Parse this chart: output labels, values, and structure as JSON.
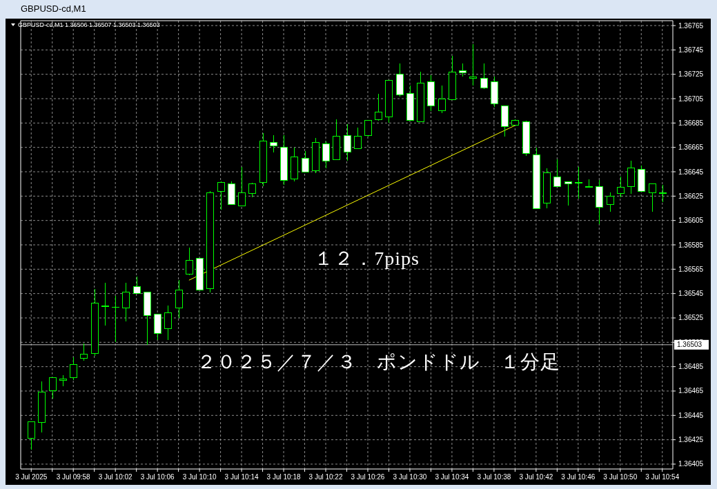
{
  "chart_data": {
    "type": "candlestick",
    "title": "GBPUSD-cd,M1",
    "subtitle": "GBPUSD-cd,M1  1.36506 1.36507 1.36503 1.36503",
    "x": [
      "2025-07-03T09:54",
      "2025-07-03T09:55",
      "2025-07-03T09:56",
      "2025-07-03T09:57",
      "2025-07-03T09:58",
      "2025-07-03T09:59",
      "2025-07-03T10:00",
      "2025-07-03T10:01",
      "2025-07-03T10:02",
      "2025-07-03T10:03",
      "2025-07-03T10:04",
      "2025-07-03T10:05",
      "2025-07-03T10:06",
      "2025-07-03T10:07",
      "2025-07-03T10:08",
      "2025-07-03T10:09",
      "2025-07-03T10:10",
      "2025-07-03T10:11",
      "2025-07-03T10:12",
      "2025-07-03T10:13",
      "2025-07-03T10:14",
      "2025-07-03T10:15",
      "2025-07-03T10:16",
      "2025-07-03T10:17",
      "2025-07-03T10:18",
      "2025-07-03T10:19",
      "2025-07-03T10:20",
      "2025-07-03T10:21",
      "2025-07-03T10:22",
      "2025-07-03T10:23",
      "2025-07-03T10:24",
      "2025-07-03T10:25",
      "2025-07-03T10:26",
      "2025-07-03T10:27",
      "2025-07-03T10:28",
      "2025-07-03T10:29",
      "2025-07-03T10:30",
      "2025-07-03T10:31",
      "2025-07-03T10:32",
      "2025-07-03T10:33",
      "2025-07-03T10:34",
      "2025-07-03T10:35",
      "2025-07-03T10:36",
      "2025-07-03T10:37",
      "2025-07-03T10:38",
      "2025-07-03T10:39",
      "2025-07-03T10:40",
      "2025-07-03T10:41",
      "2025-07-03T10:42",
      "2025-07-03T10:43",
      "2025-07-03T10:44",
      "2025-07-03T10:45",
      "2025-07-03T10:46",
      "2025-07-03T10:47",
      "2025-07-03T10:48",
      "2025-07-03T10:49",
      "2025-07-03T10:50",
      "2025-07-03T10:51",
      "2025-07-03T10:52",
      "2025-07-03T10:53",
      "2025-07-03T10:54"
    ],
    "series": [
      {
        "type": "candlestick",
        "color": "#00ff00",
        "colors": [
          "#000000",
          "#000000",
          "#000000",
          "#000000",
          "#000000",
          "#000000",
          "#000000",
          "#000000",
          "#000000",
          "#000000",
          "#ffffff",
          "#ffffff",
          "#ffffff",
          "#000000",
          "#000000",
          "#000000",
          "#ffffff",
          "#000000",
          "#000000",
          "#ffffff",
          "#000000",
          "#000000",
          "#000000",
          "#ffffff",
          "#ffffff",
          "#000000",
          "#ffffff",
          "#000000",
          "#ffffff",
          "#000000",
          "#ffffff",
          "#000000",
          "#000000",
          "#000000",
          "#000000",
          "#ffffff",
          "#ffffff",
          "#000000",
          "#ffffff",
          "#000000",
          "#000000",
          "#ffffff",
          "#000000",
          "#ffffff",
          "#ffffff",
          "#ffffff",
          "#000000",
          "#ffffff",
          "#ffffff",
          "#000000",
          "#ffffff",
          "#ffffff",
          "#000000",
          "#ffffff",
          "#ffffff",
          "#000000",
          "#000000",
          "#000000",
          "#ffffff",
          "#000000",
          "#000000"
        ],
        "ohlc": [
          [
            1.36426,
            1.3644,
            1.36417,
            1.3644
          ],
          [
            1.36439,
            1.36473,
            1.36431,
            1.36464
          ],
          [
            1.36465,
            1.36476,
            1.36459,
            1.36476
          ],
          [
            1.36474,
            1.36478,
            1.36469,
            1.36475
          ],
          [
            1.36476,
            1.36493,
            1.36474,
            1.36487
          ],
          [
            1.36492,
            1.36504,
            1.3649,
            1.36495
          ],
          [
            1.36496,
            1.36549,
            1.36494,
            1.36537
          ],
          [
            1.36535,
            1.36554,
            1.36519,
            1.36535
          ],
          [
            1.36534,
            1.36543,
            1.36505,
            1.36534
          ],
          [
            1.36533,
            1.36554,
            1.36522,
            1.36546
          ],
          [
            1.36551,
            1.36559,
            1.36545,
            1.36545
          ],
          [
            1.36546,
            1.36546,
            1.36503,
            1.36527
          ],
          [
            1.36528,
            1.36528,
            1.36507,
            1.36512
          ],
          [
            1.36516,
            1.36535,
            1.36507,
            1.36529
          ],
          [
            1.36533,
            1.36556,
            1.36525,
            1.36548
          ],
          [
            1.36561,
            1.36583,
            1.3656,
            1.36572
          ],
          [
            1.36574,
            1.36574,
            1.36548,
            1.36548
          ],
          [
            1.36549,
            1.36629,
            1.36546,
            1.36628
          ],
          [
            1.36629,
            1.36637,
            1.36614,
            1.36636
          ],
          [
            1.36635,
            1.36637,
            1.36618,
            1.36618
          ],
          [
            1.36617,
            1.36649,
            1.36617,
            1.36628
          ],
          [
            1.36627,
            1.36636,
            1.36624,
            1.36635
          ],
          [
            1.36636,
            1.36677,
            1.36633,
            1.3667
          ],
          [
            1.36669,
            1.36675,
            1.36661,
            1.36666
          ],
          [
            1.36665,
            1.36675,
            1.36634,
            1.36638
          ],
          [
            1.36639,
            1.36665,
            1.36637,
            1.36657
          ],
          [
            1.36656,
            1.36662,
            1.36645,
            1.36645
          ],
          [
            1.36646,
            1.36673,
            1.36644,
            1.36669
          ],
          [
            1.36668,
            1.3667,
            1.36648,
            1.36654
          ],
          [
            1.36655,
            1.36688,
            1.36655,
            1.36674
          ],
          [
            1.36675,
            1.36684,
            1.36654,
            1.36661
          ],
          [
            1.36664,
            1.36681,
            1.36664,
            1.36674
          ],
          [
            1.36675,
            1.36687,
            1.36674,
            1.36687
          ],
          [
            1.36688,
            1.36709,
            1.36687,
            1.36694
          ],
          [
            1.3669,
            1.3672,
            1.36685,
            1.3672
          ],
          [
            1.36725,
            1.36734,
            1.36707,
            1.36708
          ],
          [
            1.36709,
            1.36716,
            1.36687,
            1.36687
          ],
          [
            1.36686,
            1.36727,
            1.36686,
            1.36718
          ],
          [
            1.36719,
            1.36724,
            1.36695,
            1.36699
          ],
          [
            1.36695,
            1.36716,
            1.36693,
            1.36705
          ],
          [
            1.36704,
            1.3674,
            1.36704,
            1.36727
          ],
          [
            1.36728,
            1.36734,
            1.36723,
            1.36726
          ],
          [
            1.36722,
            1.3675,
            1.36716,
            1.36723
          ],
          [
            1.36722,
            1.36734,
            1.36713,
            1.36714
          ],
          [
            1.36719,
            1.36723,
            1.36698,
            1.36701
          ],
          [
            1.36699,
            1.36699,
            1.36674,
            1.36682
          ],
          [
            1.36683,
            1.36688,
            1.36683,
            1.36687
          ],
          [
            1.36686,
            1.36687,
            1.36658,
            1.3666
          ],
          [
            1.36659,
            1.36665,
            1.36615,
            1.36615
          ],
          [
            1.36619,
            1.36648,
            1.36615,
            1.36644
          ],
          [
            1.36641,
            1.36655,
            1.36633,
            1.36633
          ],
          [
            1.36637,
            1.36637,
            1.36617,
            1.36635
          ],
          [
            1.36636,
            1.36649,
            1.36623,
            1.36636
          ],
          [
            1.36633,
            1.36639,
            1.36632,
            1.36632
          ],
          [
            1.36633,
            1.36638,
            1.36602,
            1.36616
          ],
          [
            1.36618,
            1.36628,
            1.36612,
            1.36625
          ],
          [
            1.36627,
            1.36641,
            1.36624,
            1.36632
          ],
          [
            1.36633,
            1.36654,
            1.36627,
            1.36648
          ],
          [
            1.36647,
            1.3665,
            1.36629,
            1.36629
          ],
          [
            1.36628,
            1.36635,
            1.36612,
            1.36635
          ],
          [
            1.36627,
            1.36634,
            1.3662,
            1.36628
          ]
        ]
      },
      {
        "type": "line",
        "color": "#ffff00",
        "x": [
          "2025-07-03T10:09",
          "2025-07-03T10:40"
        ],
        "values": [
          1.36556,
          1.36683
        ]
      }
    ],
    "ref_lines": [
      {
        "axis": "y",
        "value": 1.36503,
        "label": "1.36503",
        "color": "#c0c0c0"
      }
    ],
    "annotations": [
      "１２．7pips",
      "２０２５／７／３　ポンドドル　１分足"
    ],
    "xlim": [
      "2025-07-03T09:53",
      "2025-07-03T10:55"
    ],
    "xticks": [
      {
        "value": "2025-07-03T09:54",
        "label": "3 Jul 2025"
      },
      {
        "value": "2025-07-03T09:56",
        "label": null
      },
      {
        "value": "2025-07-03T09:58",
        "label": "3 Jul 09:58"
      },
      {
        "value": "2025-07-03T10:00",
        "label": null
      },
      {
        "value": "2025-07-03T10:02",
        "label": "3 Jul 10:02"
      },
      {
        "value": "2025-07-03T10:04",
        "label": null
      },
      {
        "value": "2025-07-03T10:06",
        "label": "3 Jul 10:06"
      },
      {
        "value": "2025-07-03T10:08",
        "label": null
      },
      {
        "value": "2025-07-03T10:10",
        "label": "3 Jul 10:10"
      },
      {
        "value": "2025-07-03T10:12",
        "label": null
      },
      {
        "value": "2025-07-03T10:14",
        "label": "3 Jul 10:14"
      },
      {
        "value": "2025-07-03T10:16",
        "label": null
      },
      {
        "value": "2025-07-03T10:18",
        "label": "3 Jul 10:18"
      },
      {
        "value": "2025-07-03T10:20",
        "label": null
      },
      {
        "value": "2025-07-03T10:22",
        "label": "3 Jul 10:22"
      },
      {
        "value": "2025-07-03T10:24",
        "label": null
      },
      {
        "value": "2025-07-03T10:26",
        "label": "3 Jul 10:26"
      },
      {
        "value": "2025-07-03T10:28",
        "label": null
      },
      {
        "value": "2025-07-03T10:30",
        "label": "3 Jul 10:30"
      },
      {
        "value": "2025-07-03T10:32",
        "label": null
      },
      {
        "value": "2025-07-03T10:34",
        "label": "3 Jul 10:34"
      },
      {
        "value": "2025-07-03T10:36",
        "label": null
      },
      {
        "value": "2025-07-03T10:38",
        "label": "3 Jul 10:38"
      },
      {
        "value": "2025-07-03T10:40",
        "label": null
      },
      {
        "value": "2025-07-03T10:42",
        "label": "3 Jul 10:42"
      },
      {
        "value": "2025-07-03T10:44",
        "label": null
      },
      {
        "value": "2025-07-03T10:46",
        "label": "3 Jul 10:46"
      },
      {
        "value": "2025-07-03T10:48",
        "label": null
      },
      {
        "value": "2025-07-03T10:50",
        "label": "3 Jul 10:50"
      },
      {
        "value": "2025-07-03T10:52",
        "label": null
      },
      {
        "value": "2025-07-03T10:54",
        "label": "3 Jul 10:54"
      }
    ],
    "ylim": [
      1.36401,
      1.36769
    ],
    "yticks": [
      1.36405,
      1.36425,
      1.36445,
      1.36465,
      1.36485,
      1.36505,
      1.36525,
      1.36545,
      1.36565,
      1.36585,
      1.36605,
      1.36625,
      1.36645,
      1.36665,
      1.36685,
      1.36705,
      1.36725,
      1.36745,
      1.36765
    ],
    "grid": true
  }
}
